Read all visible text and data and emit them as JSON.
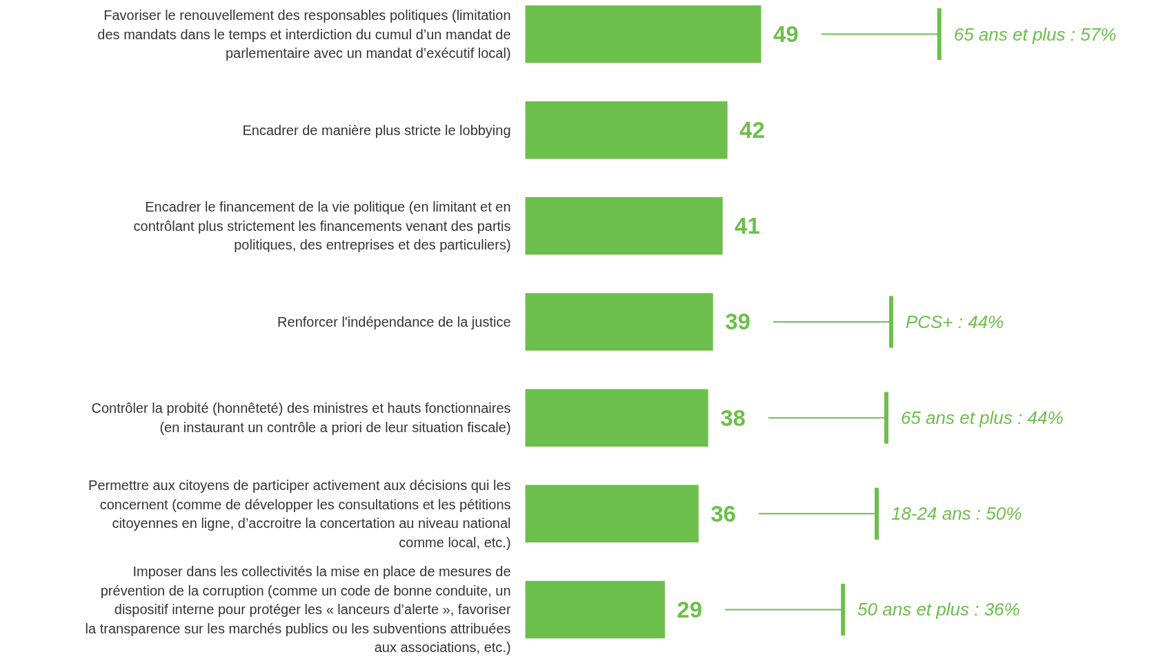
{
  "chart_data": {
    "type": "bar",
    "orientation": "horizontal",
    "categories": [
      "Favoriser le renouvellement des responsables politiques (limitation des mandats dans le temps et interdiction du cumul d’un mandat de parlementaire avec un mandat d’exécutif local)",
      "Encadrer de manière plus stricte le lobbying",
      "Encadrer le financement de la vie politique (en limitant et en contrôlant plus strictement les financements venant des partis politiques, des entreprises et des particuliers)",
      "Renforcer l'indépendance de la justice",
      "Contrôler la probité (honnêteté) des ministres et hauts fonctionnaires (en instaurant un contrôle a priori de leur situation fiscale)",
      "Permettre aux citoyens de participer activement aux décisions qui les concernent (comme de développer les consultations et les pétitions citoyennes en ligne, d’accroitre la concertation au niveau national comme local, etc.)",
      "Imposer dans les collectivités la mise en place de mesures de prévention de la corruption (comme un code de bonne conduite, un dispositif interne pour protéger les « lanceurs d’alerte », favoriser la transparence sur les marchés publics ou les subventions attribuées aux associations, etc.)"
    ],
    "values": [
      49,
      42,
      41,
      39,
      38,
      36,
      29
    ],
    "color": "#6dbf4b",
    "data_labels": true,
    "grid": false,
    "annotations": [
      "65 ans et plus : 57%",
      "PCS+ : 44%",
      "65 ans et plus : 44%",
      "18-24 ans : 50%",
      "50 ans et plus : 36%"
    ]
  }
}
